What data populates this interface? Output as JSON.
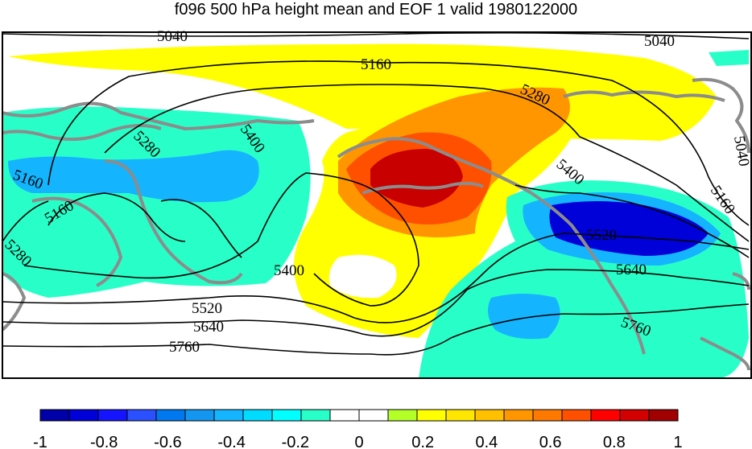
{
  "title": "f096 500 hPa height mean and EOF 1 valid 1980122000",
  "contours": [
    {
      "label": "5040"
    },
    {
      "label": "5160"
    },
    {
      "label": "5280"
    },
    {
      "label": "5400"
    },
    {
      "label": "5520"
    },
    {
      "label": "5640"
    },
    {
      "label": "5760"
    }
  ],
  "colorbar": {
    "colors": [
      "#0000a8",
      "#0000d8",
      "#1414ff",
      "#2a50ff",
      "#0078f0",
      "#1496f0",
      "#14b4ff",
      "#00dcff",
      "#00ffff",
      "#28ffc8",
      "#ffffff",
      "#ffffff",
      "#b4ff28",
      "#ffff00",
      "#ffe600",
      "#ffc000",
      "#ff9600",
      "#ff7800",
      "#ff5000",
      "#ff0000",
      "#d20000",
      "#a00000"
    ],
    "tick_labels": [
      "-1",
      "-0.8",
      "-0.6",
      "-0.4",
      "-0.2",
      "0",
      "0.2",
      "0.4",
      "0.6",
      "0.8",
      "1"
    ]
  },
  "colors": {
    "coastline": "#8c8c8c",
    "contour": "#000000"
  }
}
